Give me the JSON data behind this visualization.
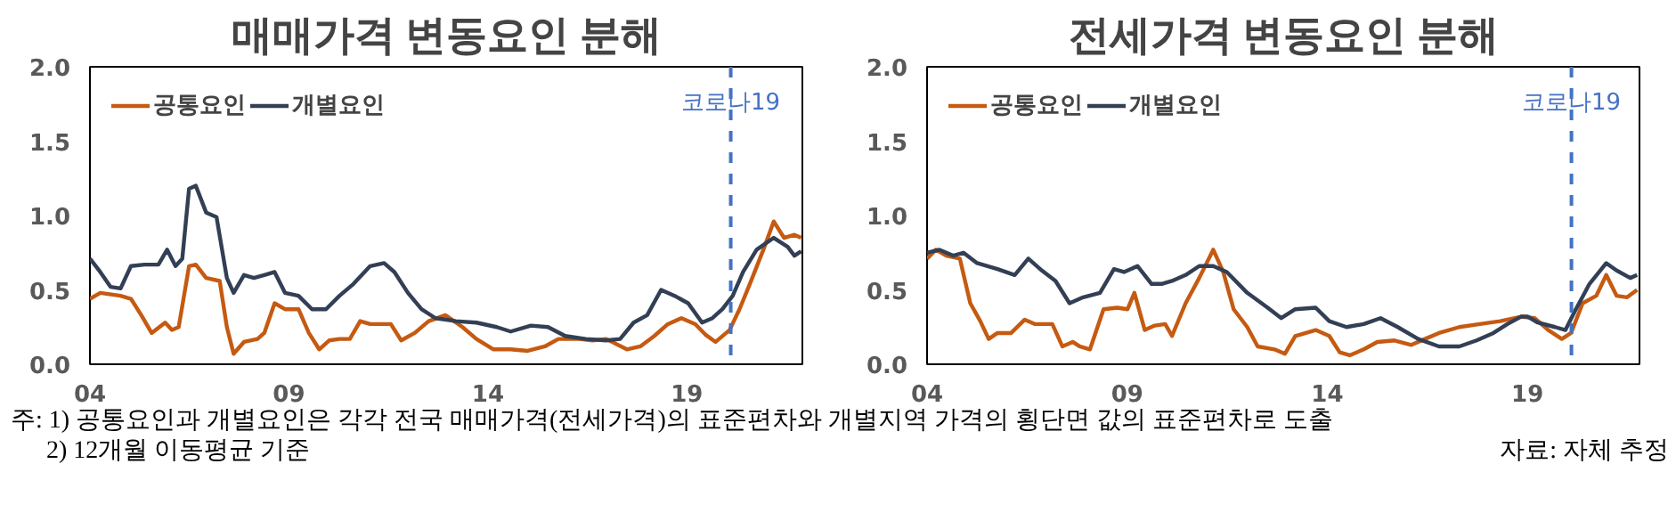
{
  "chart_data": [
    {
      "type": "line",
      "title": "매매가격 변동요인 분해",
      "xlim": [
        2004,
        2021.9
      ],
      "ylim": [
        0,
        2.0
      ],
      "xticks": [
        {
          "value": 2004,
          "label": "04"
        },
        {
          "value": 2009,
          "label": "09"
        },
        {
          "value": 2014,
          "label": "14"
        },
        {
          "value": 2019,
          "label": "19"
        }
      ],
      "yticks": [
        {
          "value": 0,
          "label": "0.0"
        },
        {
          "value": 0.5,
          "label": "0.5"
        },
        {
          "value": 1.0,
          "label": "1.0"
        },
        {
          "value": 1.5,
          "label": "1.5"
        },
        {
          "value": 2.0,
          "label": "2.0"
        }
      ],
      "grid": false,
      "legend": "top left",
      "line_style": "solid",
      "ref_lines": [
        {
          "axis": "x",
          "value": 2020.1,
          "label": "코로나19",
          "color": "#4472c4",
          "line_style": "dashed"
        }
      ],
      "series": [
        {
          "name": "공통요인",
          "color": "#c55a11",
          "x": [
            2004.0,
            2004.26,
            2004.77,
            2005.03,
            2005.29,
            2005.55,
            2005.89,
            2006.06,
            2006.23,
            2006.49,
            2006.66,
            2006.92,
            2007.26,
            2007.44,
            2007.61,
            2007.87,
            2008.21,
            2008.38,
            2008.64,
            2008.9,
            2009.24,
            2009.5,
            2009.76,
            2010.01,
            2010.27,
            2010.53,
            2010.79,
            2011.04,
            2011.39,
            2011.56,
            2011.82,
            2012.16,
            2012.51,
            2012.93,
            2013.36,
            2013.71,
            2014.14,
            2014.57,
            2015.0,
            2015.43,
            2015.77,
            2016.29,
            2016.63,
            2016.97,
            2017.49,
            2017.83,
            2018.18,
            2018.52,
            2018.86,
            2019.21,
            2019.46,
            2019.72,
            2020.07,
            2020.32,
            2020.58,
            2020.92,
            2021.18,
            2021.44,
            2021.7,
            2021.87
          ],
          "values": [
            0.44,
            0.48,
            0.46,
            0.44,
            0.33,
            0.21,
            0.28,
            0.23,
            0.25,
            0.66,
            0.67,
            0.58,
            0.56,
            0.25,
            0.07,
            0.15,
            0.17,
            0.21,
            0.41,
            0.37,
            0.37,
            0.21,
            0.1,
            0.16,
            0.17,
            0.17,
            0.29,
            0.27,
            0.27,
            0.27,
            0.16,
            0.21,
            0.29,
            0.33,
            0.25,
            0.17,
            0.1,
            0.1,
            0.09,
            0.12,
            0.17,
            0.17,
            0.16,
            0.17,
            0.1,
            0.12,
            0.19,
            0.27,
            0.31,
            0.27,
            0.2,
            0.15,
            0.23,
            0.37,
            0.54,
            0.77,
            0.96,
            0.85,
            0.87,
            0.85
          ]
        },
        {
          "name": "개별요인",
          "color": "#323f55",
          "x": [
            2004.0,
            2004.26,
            2004.52,
            2004.77,
            2005.03,
            2005.37,
            2005.72,
            2005.94,
            2006.15,
            2006.32,
            2006.49,
            2006.66,
            2006.92,
            2007.18,
            2007.44,
            2007.61,
            2007.87,
            2008.12,
            2008.38,
            2008.64,
            2008.9,
            2009.24,
            2009.58,
            2009.93,
            2010.27,
            2010.62,
            2011.04,
            2011.39,
            2011.65,
            2011.99,
            2012.33,
            2012.68,
            2013.19,
            2013.71,
            2014.22,
            2014.57,
            2015.08,
            2015.51,
            2015.94,
            2016.46,
            2016.97,
            2017.32,
            2017.66,
            2018.0,
            2018.35,
            2018.69,
            2019.03,
            2019.38,
            2019.64,
            2019.89,
            2020.15,
            2020.41,
            2020.75,
            2021.18,
            2021.53,
            2021.7,
            2021.87
          ],
          "values": [
            0.71,
            0.62,
            0.52,
            0.51,
            0.66,
            0.67,
            0.67,
            0.77,
            0.66,
            0.71,
            1.18,
            1.2,
            1.02,
            0.99,
            0.58,
            0.48,
            0.6,
            0.58,
            0.6,
            0.62,
            0.48,
            0.46,
            0.37,
            0.37,
            0.46,
            0.54,
            0.66,
            0.68,
            0.62,
            0.48,
            0.37,
            0.31,
            0.29,
            0.28,
            0.25,
            0.22,
            0.26,
            0.25,
            0.19,
            0.17,
            0.16,
            0.17,
            0.28,
            0.33,
            0.5,
            0.46,
            0.41,
            0.28,
            0.31,
            0.37,
            0.46,
            0.62,
            0.77,
            0.85,
            0.79,
            0.73,
            0.76
          ]
        }
      ],
      "annotations": [
        "주: 1) 공통요인과 개별요인은 각각 전국 매매가격(전세가격)의 표준편차와 개별지역 가격의 횡단면 값의 표준편차로 도출",
        "2) 12개월 이동평균 기준"
      ]
    },
    {
      "type": "line",
      "title": "전세가격 변동요인 분해",
      "xlim": [
        2004,
        2021.8
      ],
      "ylim": [
        0,
        2.0
      ],
      "xticks": [
        {
          "value": 2004,
          "label": "04"
        },
        {
          "value": 2009,
          "label": "09"
        },
        {
          "value": 2014,
          "label": "14"
        },
        {
          "value": 2019,
          "label": "19"
        }
      ],
      "yticks": [
        {
          "value": 0,
          "label": "0.0"
        },
        {
          "value": 0.5,
          "label": "0.5"
        },
        {
          "value": 1.0,
          "label": "1.0"
        },
        {
          "value": 1.5,
          "label": "1.5"
        },
        {
          "value": 2.0,
          "label": "2.0"
        }
      ],
      "grid": false,
      "legend": "top left",
      "line_style": "solid",
      "ref_lines": [
        {
          "axis": "x",
          "value": 2020.1,
          "label": "코로나19",
          "color": "#4472c4",
          "line_style": "dashed"
        }
      ],
      "series": [
        {
          "name": "공통요인",
          "color": "#c55a11",
          "x": [
            2004.0,
            2004.22,
            2004.48,
            2004.82,
            2005.08,
            2005.33,
            2005.54,
            2005.76,
            2006.1,
            2006.44,
            2006.7,
            2006.96,
            2007.13,
            2007.38,
            2007.64,
            2007.81,
            2008.07,
            2008.41,
            2008.75,
            2009.01,
            2009.18,
            2009.44,
            2009.69,
            2009.95,
            2010.12,
            2010.46,
            2010.8,
            2011.15,
            2011.4,
            2011.66,
            2012.0,
            2012.26,
            2012.68,
            2012.94,
            2013.2,
            2013.71,
            2014.05,
            2014.31,
            2014.56,
            2014.91,
            2015.25,
            2015.68,
            2016.1,
            2016.44,
            2016.79,
            2017.3,
            2017.81,
            2018.32,
            2018.84,
            2019.18,
            2019.52,
            2019.86,
            2020.09,
            2020.38,
            2020.72,
            2020.97,
            2021.23,
            2021.49,
            2021.74
          ],
          "values": [
            0.71,
            0.77,
            0.73,
            0.71,
            0.41,
            0.29,
            0.17,
            0.21,
            0.21,
            0.3,
            0.27,
            0.27,
            0.27,
            0.12,
            0.15,
            0.12,
            0.1,
            0.37,
            0.38,
            0.37,
            0.48,
            0.23,
            0.26,
            0.27,
            0.19,
            0.41,
            0.58,
            0.77,
            0.62,
            0.37,
            0.25,
            0.12,
            0.1,
            0.07,
            0.19,
            0.23,
            0.19,
            0.08,
            0.06,
            0.1,
            0.15,
            0.16,
            0.13,
            0.17,
            0.21,
            0.25,
            0.27,
            0.29,
            0.32,
            0.31,
            0.23,
            0.17,
            0.21,
            0.41,
            0.46,
            0.6,
            0.46,
            0.45,
            0.5
          ]
        },
        {
          "name": "개별요인",
          "color": "#323f55",
          "x": [
            2004.0,
            2004.31,
            2004.65,
            2004.91,
            2005.25,
            2005.76,
            2006.19,
            2006.53,
            2006.87,
            2007.21,
            2007.56,
            2007.9,
            2008.32,
            2008.67,
            2008.92,
            2009.26,
            2009.61,
            2009.86,
            2010.12,
            2010.46,
            2010.8,
            2011.15,
            2011.49,
            2012.0,
            2012.51,
            2012.85,
            2013.2,
            2013.71,
            2014.05,
            2014.48,
            2014.91,
            2015.33,
            2015.76,
            2016.27,
            2016.79,
            2017.3,
            2017.73,
            2018.15,
            2018.5,
            2018.84,
            2019.01,
            2019.26,
            2019.69,
            2019.95,
            2020.21,
            2020.55,
            2020.97,
            2021.23,
            2021.57,
            2021.74
          ],
          "values": [
            0.75,
            0.77,
            0.73,
            0.75,
            0.68,
            0.64,
            0.6,
            0.71,
            0.63,
            0.56,
            0.41,
            0.45,
            0.48,
            0.64,
            0.62,
            0.66,
            0.54,
            0.54,
            0.56,
            0.6,
            0.66,
            0.66,
            0.62,
            0.48,
            0.38,
            0.31,
            0.37,
            0.38,
            0.29,
            0.25,
            0.27,
            0.31,
            0.25,
            0.17,
            0.12,
            0.12,
            0.16,
            0.21,
            0.27,
            0.32,
            0.32,
            0.28,
            0.25,
            0.23,
            0.37,
            0.54,
            0.68,
            0.63,
            0.58,
            0.6
          ]
        }
      ],
      "annotations": [
        "자료: 자체 추정"
      ]
    }
  ]
}
